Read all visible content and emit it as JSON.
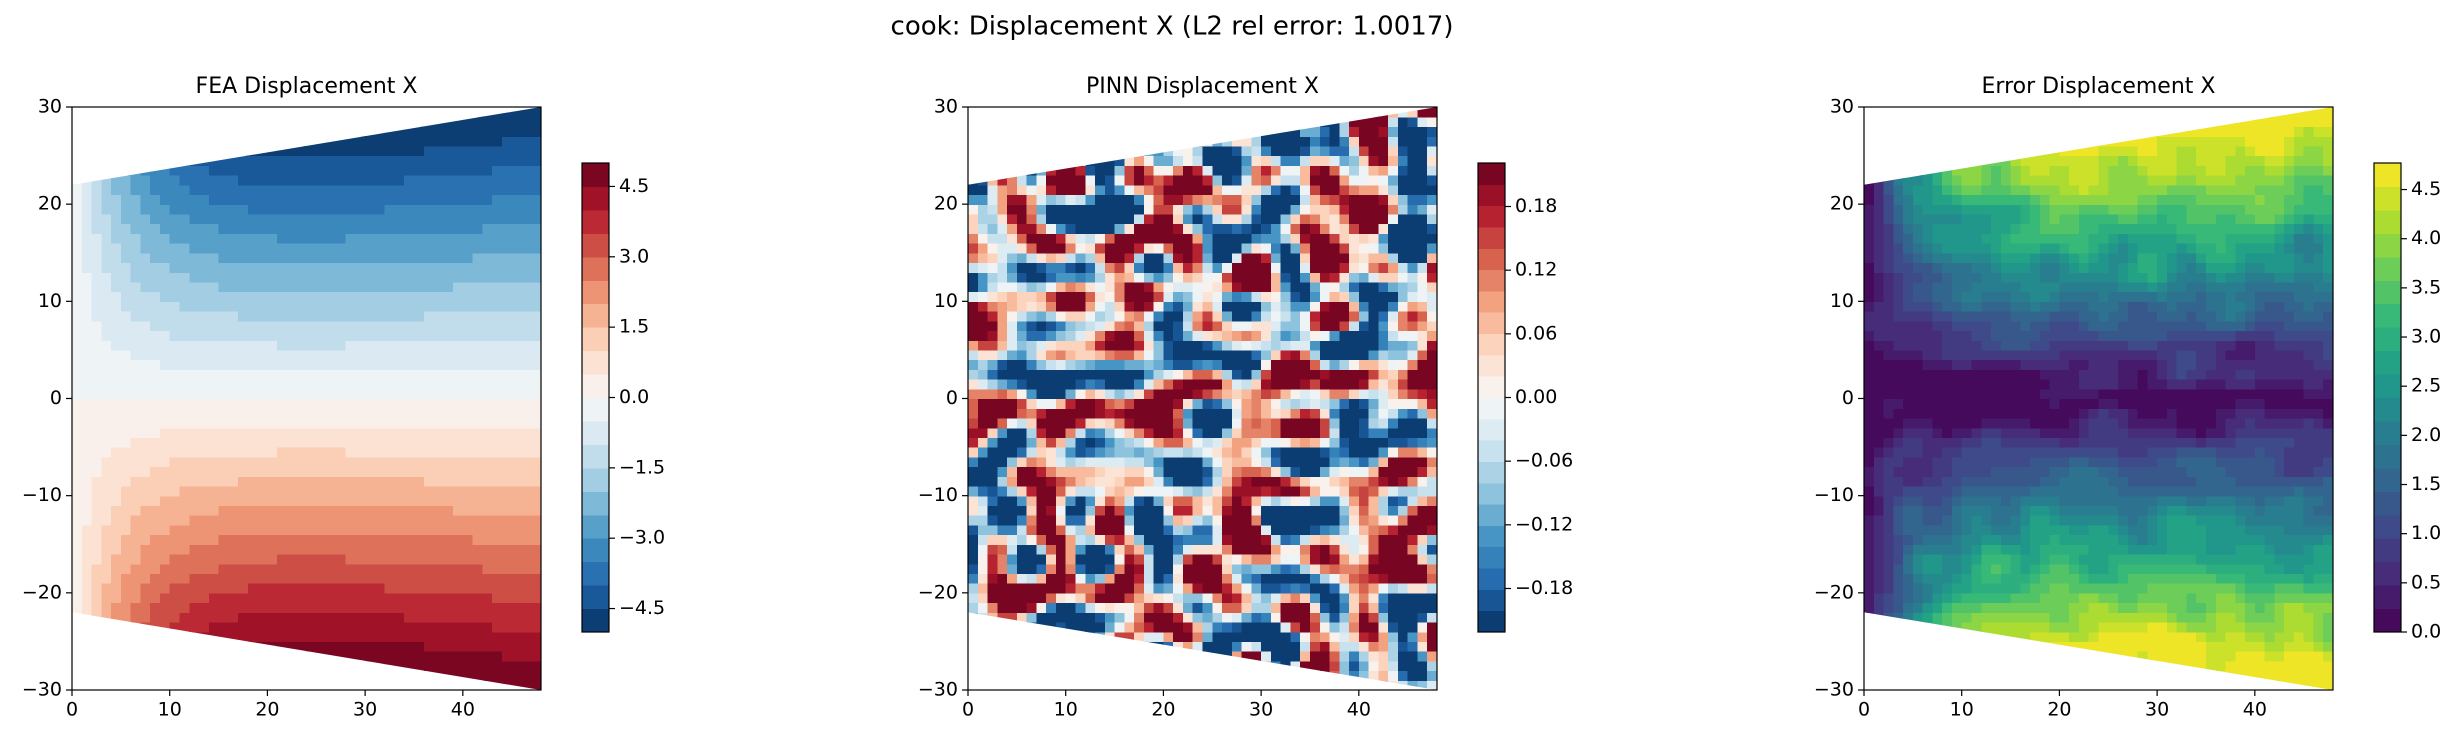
{
  "title": "cook: Displacement X (L2 rel error: 1.0017)",
  "chart_data": [
    {
      "type": "contour",
      "title": "FEA Displacement X",
      "xlim": [
        0,
        48
      ],
      "ylim": [
        -30,
        30
      ],
      "xticks": [
        0,
        10,
        20,
        30,
        40
      ],
      "yticks": [
        {
          "value": -30,
          "label": "−30"
        },
        {
          "value": -20,
          "label": "−20"
        },
        {
          "value": -10,
          "label": "−10"
        },
        0,
        10,
        20,
        30
      ],
      "colorbar": {
        "lim": [
          -5,
          5
        ],
        "levels": 20,
        "ticks": [
          {
            "value": -4.5,
            "label": "−4.5"
          },
          {
            "value": -3,
            "label": "−3.0"
          },
          {
            "value": -1.5,
            "label": "−1.5"
          },
          {
            "value": 0,
            "label": "0.0"
          },
          1.5,
          {
            "value": 3,
            "label": "3.0"
          },
          4.5
        ],
        "colors": [
          "#053061",
          "#2166ac",
          "#4393c3",
          "#92c5de",
          "#d1e5f0",
          "#f7f7f7",
          "#fddbc7",
          "#f4a582",
          "#d6604d",
          "#b2182b",
          "#67001f"
        ]
      }
    },
    {
      "type": "contour",
      "title": "PINN Displacement X",
      "xlim": [
        0,
        48
      ],
      "ylim": [
        -30,
        30
      ],
      "xticks": [
        0,
        10,
        20,
        30,
        40
      ],
      "yticks": [
        {
          "value": -30,
          "label": "−30"
        },
        {
          "value": -20,
          "label": "−20"
        },
        {
          "value": -10,
          "label": "−10"
        },
        0,
        10,
        20,
        30
      ],
      "colorbar": {
        "lim": [
          -0.221,
          0.221
        ],
        "levels": 22,
        "ticks": [
          {
            "value": -0.18,
            "label": "−0.18"
          },
          {
            "value": -0.12,
            "label": "−0.12"
          },
          {
            "value": -0.06,
            "label": "−0.06"
          },
          {
            "value": 0,
            "label": "0.00"
          },
          0.06,
          0.12,
          0.18
        ],
        "colors": [
          "#053061",
          "#2166ac",
          "#4393c3",
          "#92c5de",
          "#d1e5f0",
          "#f7f7f7",
          "#fddbc7",
          "#f4a582",
          "#d6604d",
          "#b2182b",
          "#67001f"
        ]
      }
    },
    {
      "type": "contour",
      "title": "Error Displacement X",
      "xlim": [
        0,
        48
      ],
      "ylim": [
        -30,
        30
      ],
      "xticks": [
        0,
        10,
        20,
        30,
        40
      ],
      "yticks": [
        {
          "value": -30,
          "label": "−30"
        },
        {
          "value": -20,
          "label": "−20"
        },
        {
          "value": -10,
          "label": "−10"
        },
        0,
        10,
        20,
        30
      ],
      "colorbar": {
        "lim": [
          0,
          4.77
        ],
        "levels": 20,
        "ticks": [
          {
            "value": 0,
            "label": "0.0"
          },
          0.5,
          {
            "value": 1,
            "label": "1.0"
          },
          1.5,
          {
            "value": 2,
            "label": "2.0"
          },
          2.5,
          {
            "value": 3,
            "label": "3.0"
          },
          3.5,
          {
            "value": 4,
            "label": "4.0"
          },
          4.5
        ],
        "colors": [
          "#440154",
          "#482878",
          "#3e4989",
          "#31688e",
          "#26828e",
          "#1f9e89",
          "#35b779",
          "#6ece58",
          "#b5de2b",
          "#fde725"
        ]
      }
    }
  ]
}
